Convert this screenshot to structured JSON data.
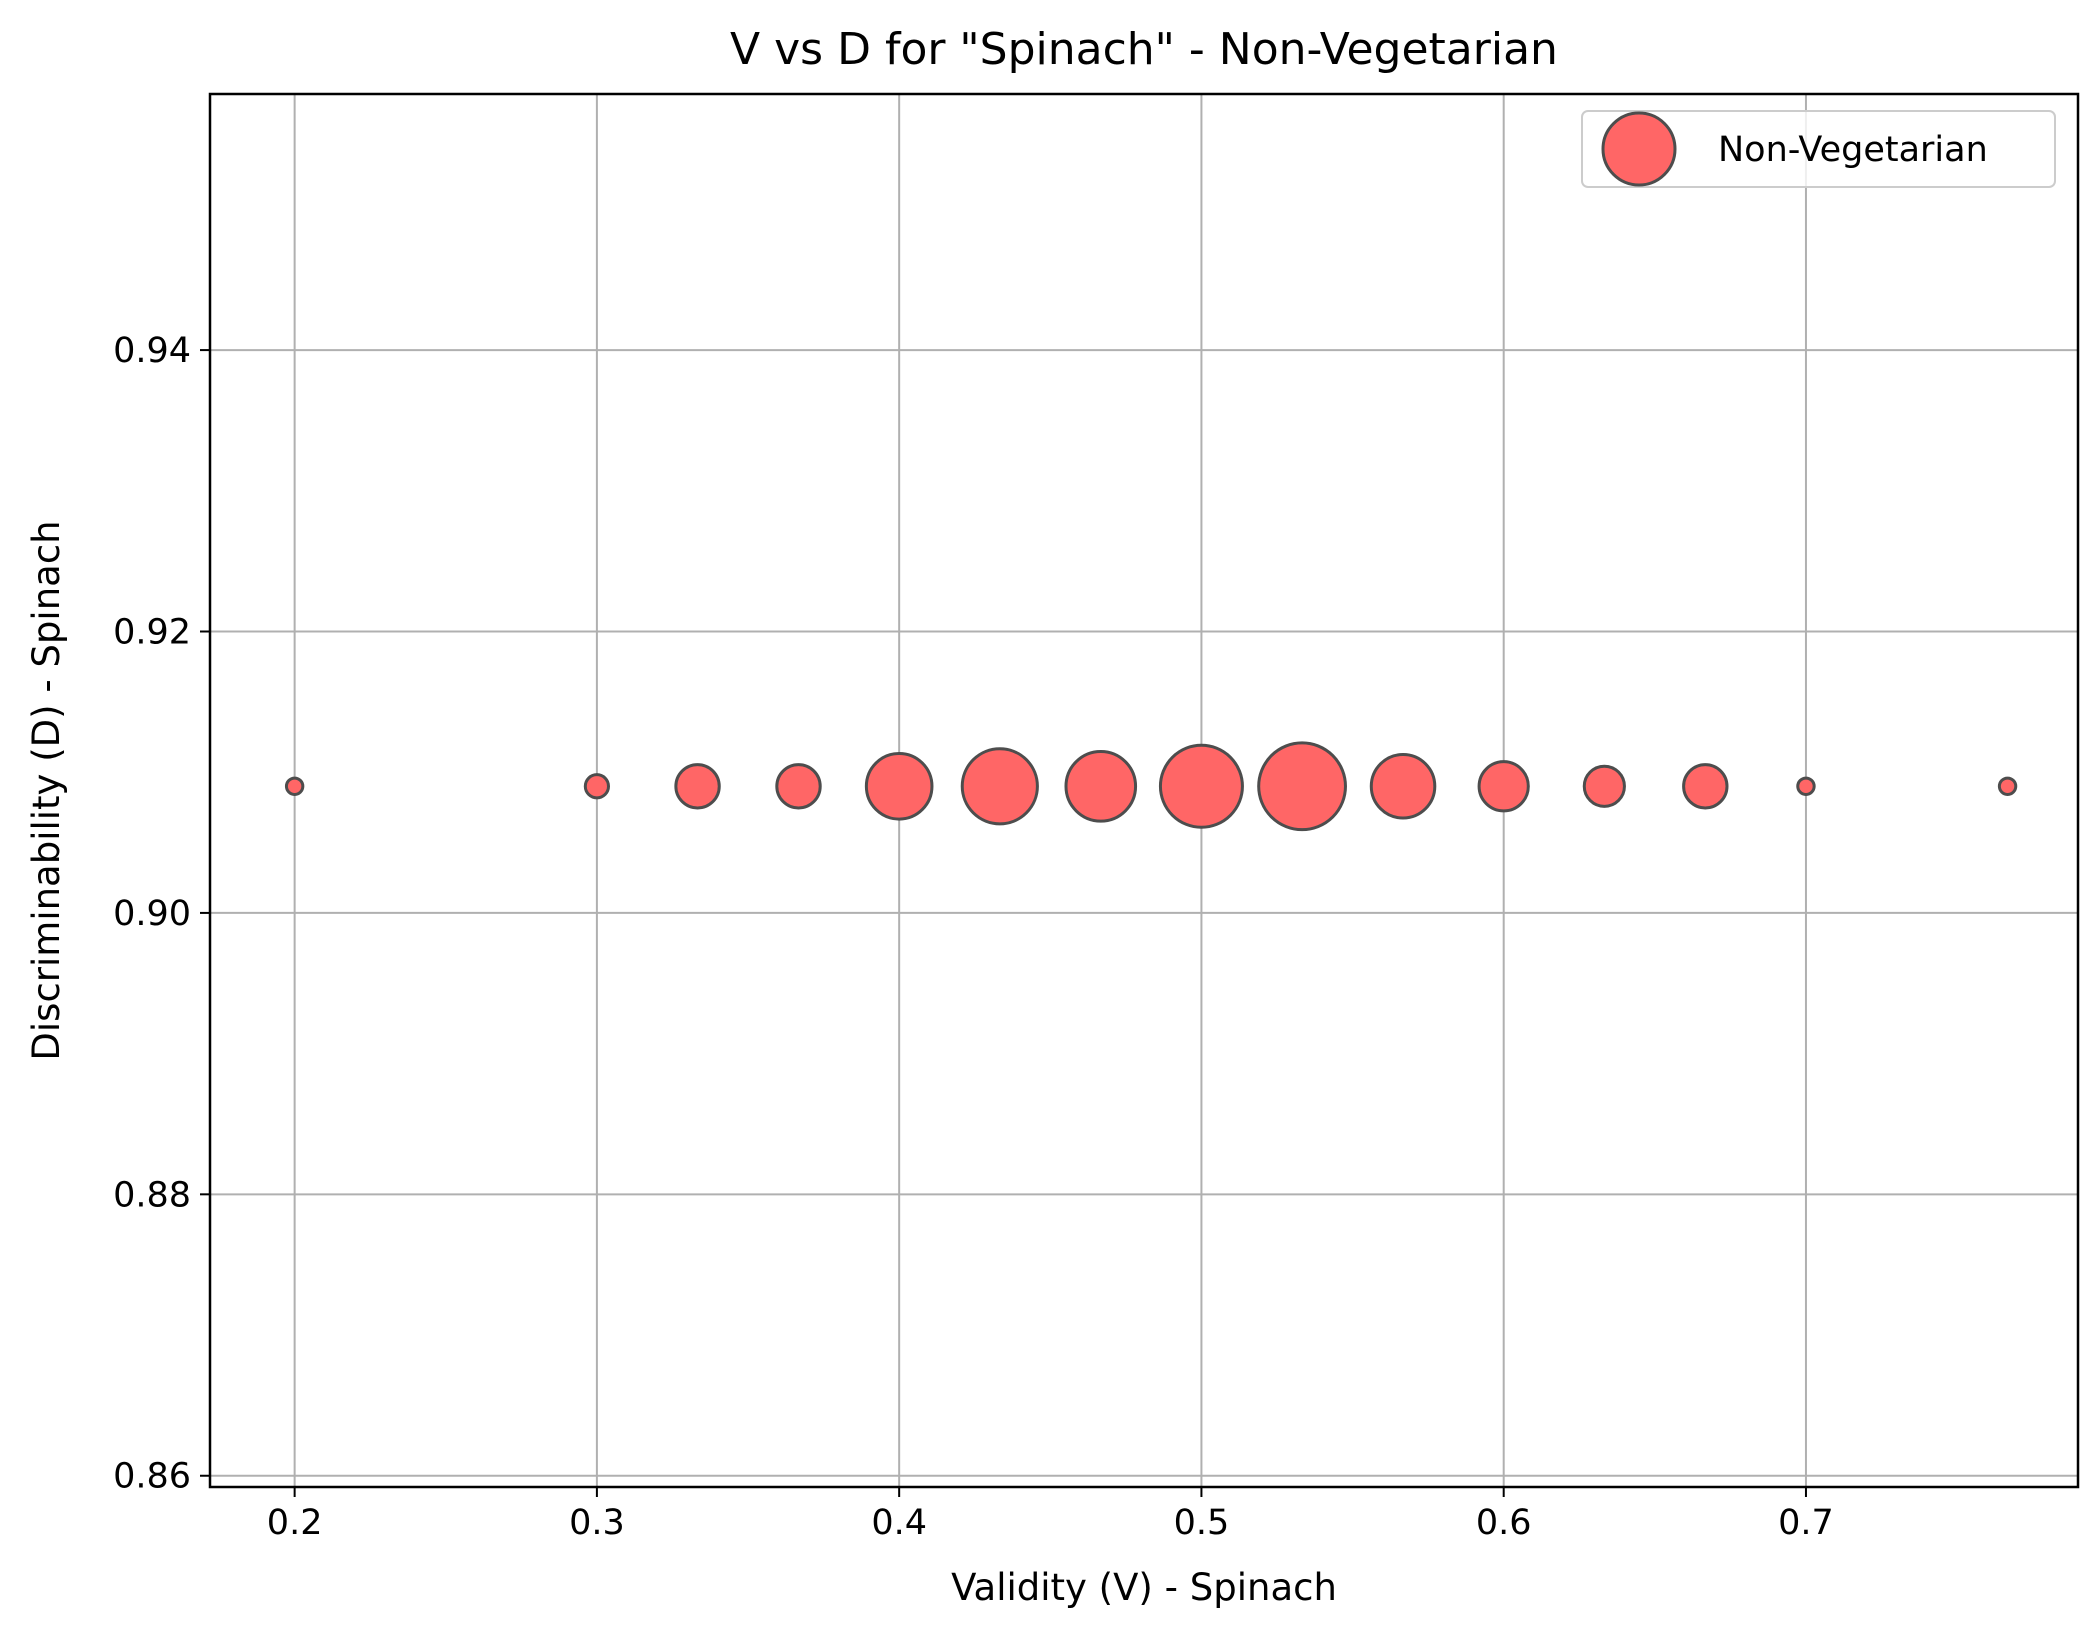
{
  "chart_data": {
    "type": "scatter",
    "title": "V vs D for \"Spinach\" - Non-Vegetarian",
    "xlabel": "Validity (V) - Spinach",
    "ylabel": "Discriminability (D) - Spinach",
    "xlim": [
      0.172,
      0.79
    ],
    "ylim": [
      0.8592,
      0.9582
    ],
    "xticks": [
      0.2,
      0.3,
      0.4,
      0.5,
      0.6,
      0.7
    ],
    "xtick_labels": [
      "0.2",
      "0.3",
      "0.4",
      "0.5",
      "0.6",
      "0.7"
    ],
    "yticks": [
      0.86,
      0.88,
      0.9,
      0.92,
      0.94
    ],
    "ytick_labels": [
      "0.86",
      "0.88",
      "0.90",
      "0.92",
      "0.94"
    ],
    "grid": true,
    "legend_position": "top-right",
    "series": [
      {
        "name": "Non-Vegetarian",
        "color": "#ff6666",
        "edge_color": "#4d4d4d",
        "points": [
          {
            "x": 0.2,
            "y": 0.909,
            "size": 1
          },
          {
            "x": 0.3,
            "y": 0.909,
            "size": 2
          },
          {
            "x": 0.3333,
            "y": 0.909,
            "size": 7
          },
          {
            "x": 0.3667,
            "y": 0.909,
            "size": 7
          },
          {
            "x": 0.4,
            "y": 0.909,
            "size": 16
          },
          {
            "x": 0.4333,
            "y": 0.909,
            "size": 21
          },
          {
            "x": 0.4667,
            "y": 0.909,
            "size": 18
          },
          {
            "x": 0.5,
            "y": 0.909,
            "size": 25
          },
          {
            "x": 0.5333,
            "y": 0.909,
            "size": 28
          },
          {
            "x": 0.5667,
            "y": 0.909,
            "size": 15
          },
          {
            "x": 0.6,
            "y": 0.909,
            "size": 9
          },
          {
            "x": 0.6333,
            "y": 0.909,
            "size": 6
          },
          {
            "x": 0.6667,
            "y": 0.909,
            "size": 7
          },
          {
            "x": 0.7,
            "y": 0.909,
            "size": 1
          },
          {
            "x": 0.7667,
            "y": 0.909,
            "size": 1
          }
        ]
      }
    ]
  }
}
